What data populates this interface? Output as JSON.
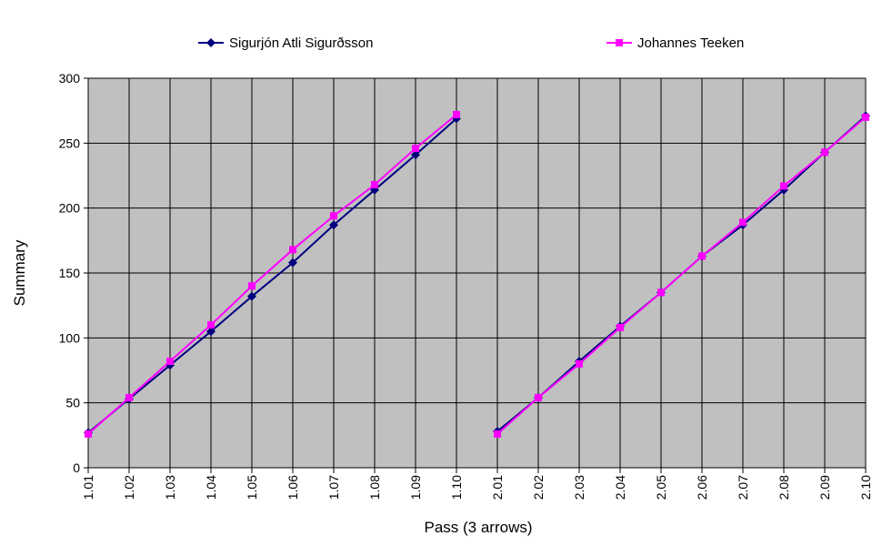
{
  "chart_data": {
    "type": "line",
    "title": "",
    "xlabel": "Pass (3 arrows)",
    "ylabel": "Summary",
    "x": [
      "1.01",
      "1.02",
      "1.03",
      "1.04",
      "1.05",
      "1.06",
      "1.07",
      "1.08",
      "1.09",
      "1.10",
      "2.01",
      "2.02",
      "2.03",
      "2.04",
      "2.05",
      "2.06",
      "2.07",
      "2.08",
      "2.09",
      "2.10"
    ],
    "ylim": [
      0,
      300
    ],
    "yticks": [
      0,
      50,
      100,
      150,
      200,
      250,
      300
    ],
    "grid": true,
    "plot_background": "#c0c0c0",
    "legend": "top",
    "series": [
      {
        "name": "Sigurjón Atli Sigurðsson",
        "color": "#000080",
        "marker": "diamond",
        "values": [
          27,
          53,
          79,
          105,
          132,
          158,
          187,
          214,
          241,
          269,
          28,
          54,
          82,
          109,
          135,
          163,
          187,
          214,
          243,
          271
        ]
      },
      {
        "name": "Johannes Teeken",
        "color": "#ff00ff",
        "marker": "square",
        "values": [
          26,
          54,
          82,
          110,
          140,
          168,
          194,
          218,
          246,
          272,
          26,
          54,
          80,
          108,
          135,
          163,
          189,
          217,
          243,
          270
        ]
      }
    ]
  }
}
